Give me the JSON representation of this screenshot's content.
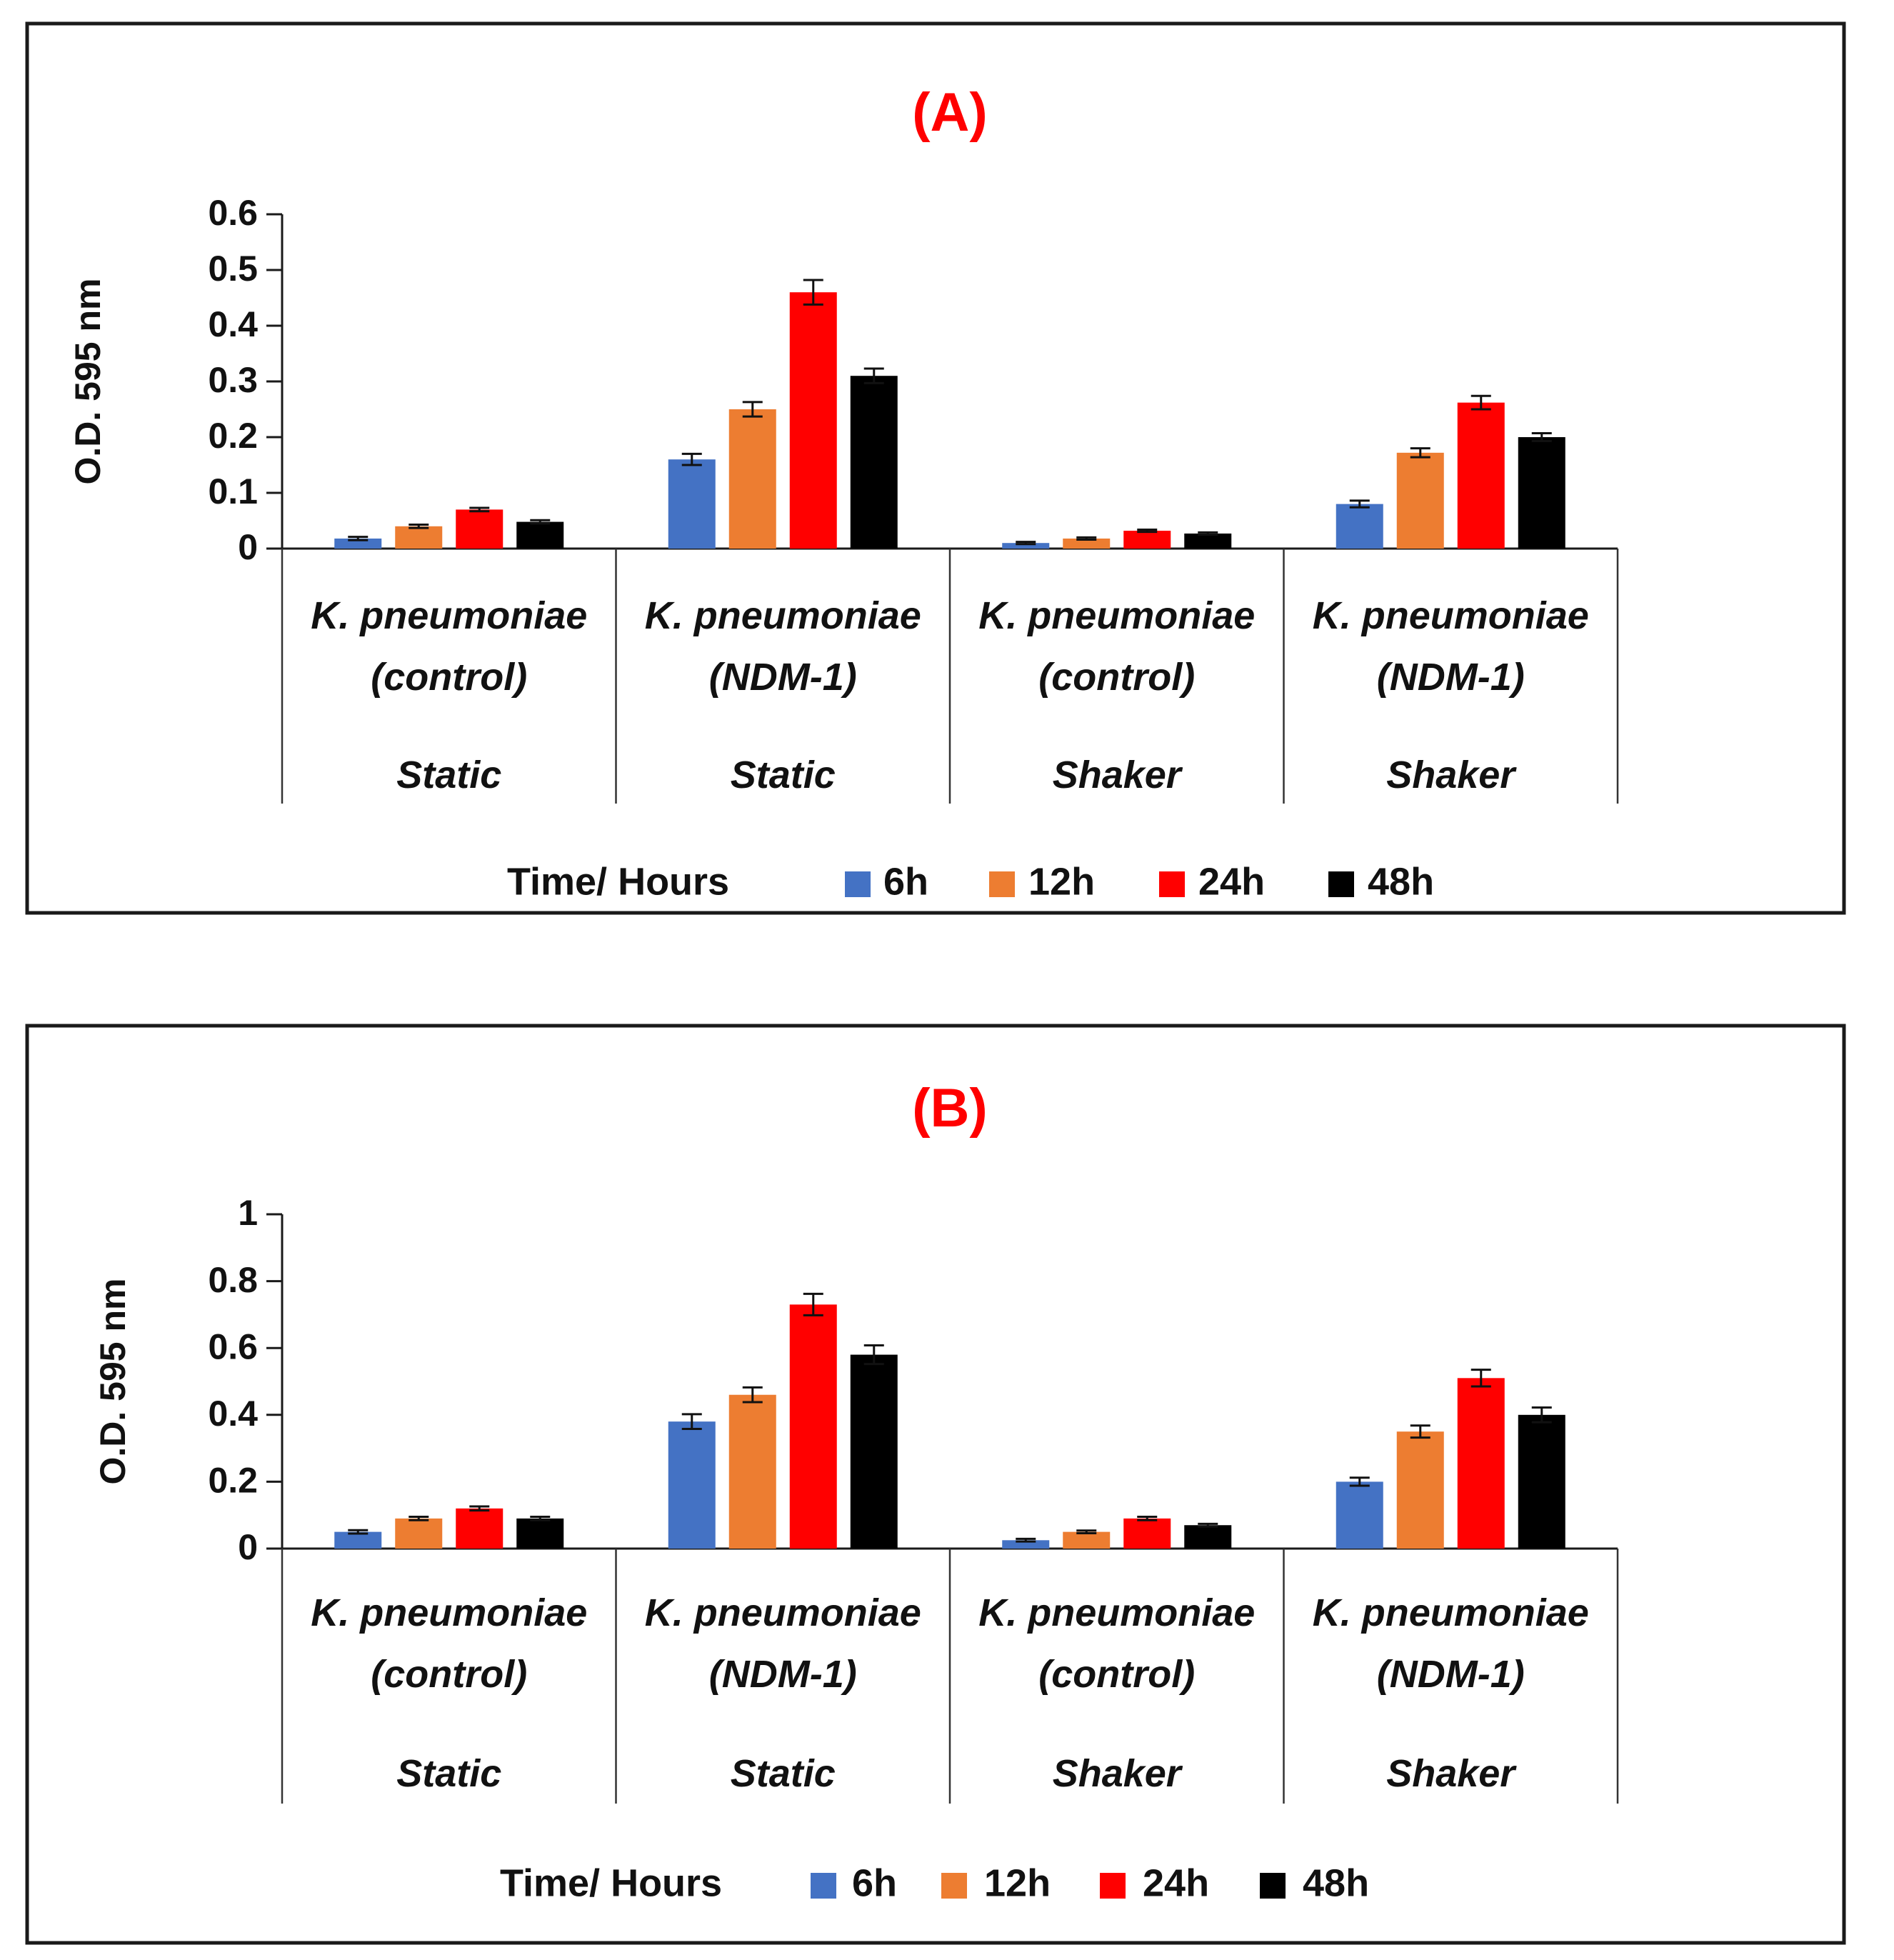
{
  "legend_title": "Time/ Hours",
  "series_colors": {
    "6h": "#4472c4",
    "12h": "#ed7d31",
    "24h": "#ff0000",
    "48h": "#000000"
  },
  "chart_data": [
    {
      "type": "bar",
      "title": "(A)",
      "ylabel": "O.D. 595 nm",
      "xlabel": "Time/ Hours",
      "ylim": [
        0,
        0.6
      ],
      "yticks": [
        "0",
        "0.1",
        "0.2",
        "0.3",
        "0.4",
        "0.5",
        "0.6"
      ],
      "ytick_values": [
        0,
        0.1,
        0.2,
        0.3,
        0.4,
        0.5,
        0.6
      ],
      "categories": [
        {
          "line1": "K. pneumoniae",
          "line2": "(control)",
          "condition": "Static"
        },
        {
          "line1": "K. pneumoniae",
          "line2": "(NDM-1)",
          "condition": "Static"
        },
        {
          "line1": "K. pneumoniae",
          "line2": "(control)",
          "condition": "Shaker"
        },
        {
          "line1": "K. pneumoniae",
          "line2": "(NDM-1)",
          "condition": "Shaker"
        }
      ],
      "series": [
        {
          "name": "6h",
          "values": [
            0.018,
            0.16,
            0.01,
            0.08
          ],
          "errors": [
            0.003,
            0.01,
            0.002,
            0.006
          ]
        },
        {
          "name": "12h",
          "values": [
            0.04,
            0.25,
            0.018,
            0.172
          ],
          "errors": [
            0.003,
            0.013,
            0.002,
            0.008
          ]
        },
        {
          "name": "24h",
          "values": [
            0.07,
            0.46,
            0.032,
            0.262
          ],
          "errors": [
            0.003,
            0.022,
            0.002,
            0.012
          ]
        },
        {
          "name": "48h",
          "values": [
            0.048,
            0.31,
            0.027,
            0.2
          ],
          "errors": [
            0.003,
            0.013,
            0.002,
            0.007
          ]
        }
      ]
    },
    {
      "type": "bar",
      "title": "(B)",
      "ylabel": "O.D. 595 nm",
      "xlabel": "Time/ Hours",
      "ylim": [
        0,
        1.0
      ],
      "yticks": [
        "0",
        "0.2",
        "0.4",
        "0.6",
        "0.8",
        "1"
      ],
      "ytick_values": [
        0,
        0.2,
        0.4,
        0.6,
        0.8,
        1.0
      ],
      "categories": [
        {
          "line1": "K. pneumoniae",
          "line2": "(control)",
          "condition": "Static"
        },
        {
          "line1": "K. pneumoniae",
          "line2": "(NDM-1)",
          "condition": "Static"
        },
        {
          "line1": "K. pneumoniae",
          "line2": "(control)",
          "condition": "Shaker"
        },
        {
          "line1": "K. pneumoniae",
          "line2": "(NDM-1)",
          "condition": "Shaker"
        }
      ],
      "series": [
        {
          "name": "6h",
          "values": [
            0.05,
            0.38,
            0.025,
            0.2
          ],
          "errors": [
            0.005,
            0.022,
            0.004,
            0.012
          ]
        },
        {
          "name": "12h",
          "values": [
            0.09,
            0.46,
            0.05,
            0.35
          ],
          "errors": [
            0.005,
            0.022,
            0.004,
            0.018
          ]
        },
        {
          "name": "24h",
          "values": [
            0.12,
            0.73,
            0.09,
            0.51
          ],
          "errors": [
            0.006,
            0.032,
            0.005,
            0.025
          ]
        },
        {
          "name": "48h",
          "values": [
            0.09,
            0.58,
            0.07,
            0.4
          ],
          "errors": [
            0.005,
            0.028,
            0.004,
            0.022
          ]
        }
      ]
    }
  ]
}
